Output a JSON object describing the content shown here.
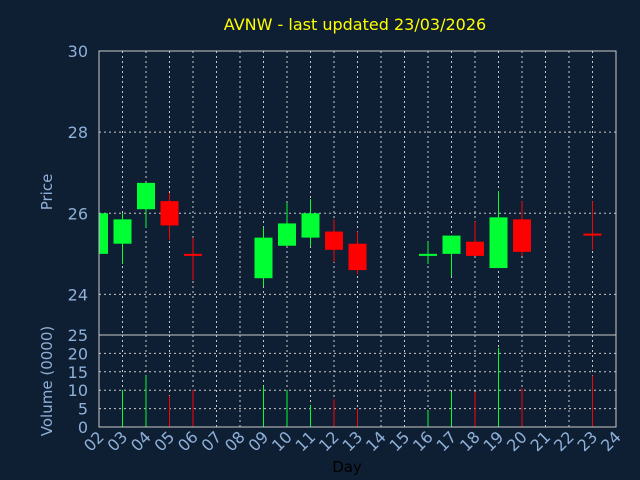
{
  "chart_data": {
    "type": "candlestick",
    "title": "AVNW - last updated 23/03/2026",
    "xlabel": "Day",
    "ylabel": "Price",
    "volume_label": "Volume (0000)",
    "x_ticks": [
      "02",
      "03",
      "04",
      "05",
      "06",
      "07",
      "08",
      "09",
      "10",
      "11",
      "12",
      "13",
      "14",
      "15",
      "16",
      "17",
      "18",
      "19",
      "20",
      "21",
      "22",
      "23",
      "24"
    ],
    "price_ylim": [
      23,
      30
    ],
    "price_ticks": [
      24,
      26,
      28,
      30
    ],
    "volume_ylim": [
      0,
      25
    ],
    "volume_ticks": [
      0,
      5,
      10,
      15,
      20,
      25
    ],
    "grid": true,
    "up_color": "#00ff33",
    "down_color": "#ff0000",
    "candles": [
      {
        "day": "02",
        "open": 25.0,
        "high": 26.0,
        "low": 25.0,
        "close": 26.0,
        "volume": 0
      },
      {
        "day": "03",
        "open": 25.25,
        "high": 26.0,
        "low": 24.75,
        "close": 25.85,
        "volume": 10
      },
      {
        "day": "04",
        "open": 26.1,
        "high": 26.75,
        "low": 25.65,
        "close": 26.75,
        "volume": 14
      },
      {
        "day": "05",
        "open": 26.3,
        "high": 26.5,
        "low": 25.35,
        "close": 25.7,
        "volume": 8.5
      },
      {
        "day": "06",
        "open": 25.0,
        "high": 25.4,
        "low": 24.35,
        "close": 24.95,
        "volume": 10
      },
      {
        "day": "09",
        "open": 24.4,
        "high": 25.65,
        "low": 24.2,
        "close": 25.4,
        "volume": 11
      },
      {
        "day": "10",
        "open": 25.2,
        "high": 26.25,
        "low": 25.2,
        "close": 25.75,
        "volume": 10
      },
      {
        "day": "11",
        "open": 25.4,
        "high": 26.35,
        "low": 25.2,
        "close": 26.0,
        "volume": 6
      },
      {
        "day": "12",
        "open": 25.55,
        "high": 25.85,
        "low": 24.8,
        "close": 25.1,
        "volume": 7.5
      },
      {
        "day": "13",
        "open": 25.25,
        "high": 25.55,
        "low": 24.5,
        "close": 24.6,
        "volume": 5
      },
      {
        "day": "16",
        "open": 24.95,
        "high": 25.3,
        "low": 24.75,
        "close": 25.0,
        "volume": 4.5
      },
      {
        "day": "17",
        "open": 25.0,
        "high": 25.45,
        "low": 24.45,
        "close": 25.45,
        "volume": 9.5
      },
      {
        "day": "18",
        "open": 25.3,
        "high": 25.8,
        "low": 24.95,
        "close": 24.95,
        "volume": 9.5
      },
      {
        "day": "19",
        "open": 24.65,
        "high": 26.55,
        "low": 24.65,
        "close": 25.9,
        "volume": 21.5
      },
      {
        "day": "20",
        "open": 25.85,
        "high": 26.3,
        "low": 24.95,
        "close": 25.05,
        "volume": 10.5
      },
      {
        "day": "23",
        "open": 25.5,
        "high": 26.3,
        "low": 25.1,
        "close": 25.45,
        "volume": 14
      }
    ]
  }
}
